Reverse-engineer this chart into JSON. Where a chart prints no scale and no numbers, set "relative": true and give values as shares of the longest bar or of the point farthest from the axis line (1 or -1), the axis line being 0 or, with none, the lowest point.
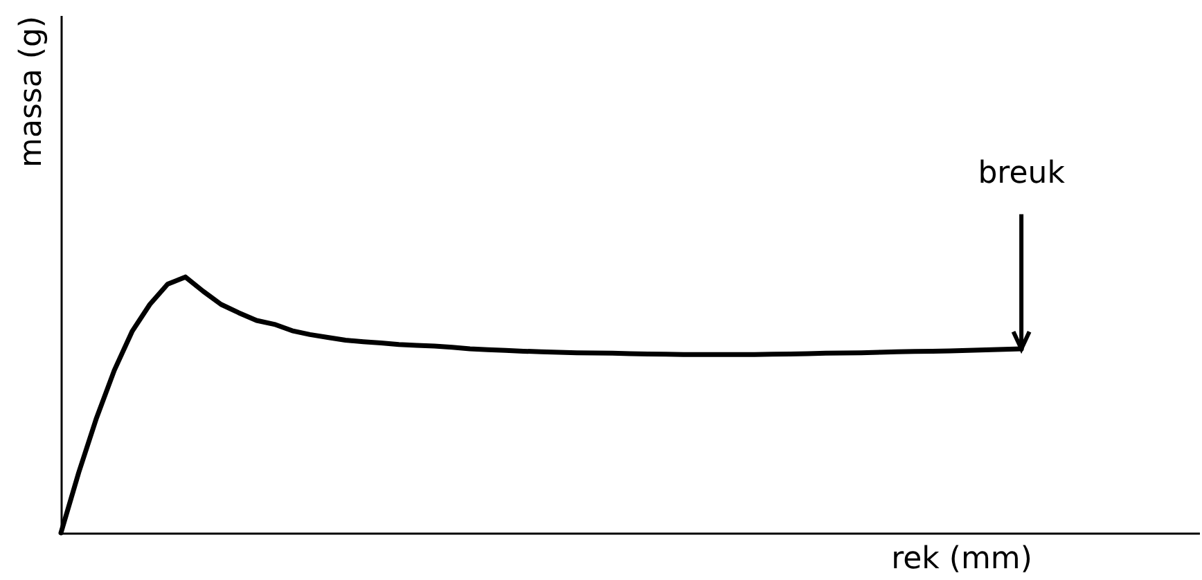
{
  "chart_data": {
    "type": "line",
    "relative": true,
    "xlabel": "rek (mm)",
    "ylabel": "massa (g)",
    "categories": [
      null,
      null,
      null,
      null,
      null,
      null,
      null,
      null,
      null,
      null,
      null,
      null,
      null,
      null,
      null,
      null,
      null,
      null,
      null,
      null,
      null,
      null,
      null,
      null,
      null,
      null,
      null,
      null,
      null,
      null,
      null,
      null,
      null,
      null,
      null,
      null,
      null,
      null,
      null,
      null,
      null,
      null,
      null,
      null,
      null,
      null,
      null,
      null,
      null,
      null,
      null,
      null,
      null,
      null,
      null,
      null,
      null,
      null,
      null,
      null,
      null,
      null,
      null,
      null,
      null
    ],
    "series": [
      {
        "color": "#000000",
        "values": [
          0,
          0.236,
          0.449,
          0.635,
          0.787,
          0.893,
          0.972,
          1,
          0.944,
          0.893,
          0.86,
          0.83,
          0.815,
          0.79,
          0.775,
          0.764,
          0.753,
          0.747,
          0.742,
          0.736,
          0.733,
          0.73,
          0.725,
          0.719,
          0.716,
          0.713,
          0.71,
          0.708,
          0.706,
          0.704,
          0.703,
          0.702,
          0.7,
          0.699,
          0.698,
          0.697,
          0.697,
          0.697,
          0.697,
          0.697,
          0.698,
          0.699,
          0.7,
          0.702,
          0.703,
          0.704,
          0.706,
          0.708,
          0.709,
          0.71,
          0.711,
          0.713,
          0.715,
          0.717,
          0.719,
          null,
          null,
          null,
          null,
          null,
          null,
          null,
          null,
          null,
          null
        ]
      }
    ],
    "annotations": [
      "breuk"
    ],
    "grid": false,
    "legend": false,
    "tick_labels": false,
    "marker": "none",
    "line_style": "solid"
  }
}
